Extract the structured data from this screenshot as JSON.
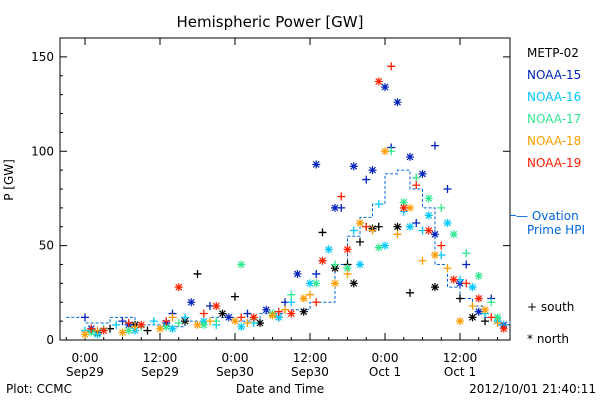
{
  "chart_data": {
    "type": "scatter",
    "title": "Hemispheric Power [GW]",
    "ylabel": "P [GW]",
    "xlabel": "Date and Time",
    "ylim": [
      0,
      160
    ],
    "yticks": [
      0,
      50,
      100,
      150
    ],
    "x_unit": "hours since 2012-09-29 00:00 UT",
    "xlim": [
      -4,
      68
    ],
    "xticks": [
      {
        "t": 0,
        "l1": "0:00",
        "l2": "Sep29"
      },
      {
        "t": 12,
        "l1": "12:00",
        "l2": "Sep29"
      },
      {
        "t": 24,
        "l1": "0:00",
        "l2": "Sep30"
      },
      {
        "t": 36,
        "l1": "12:00",
        "l2": "Sep30"
      },
      {
        "t": 48,
        "l1": "0:00",
        "l2": "Oct 1"
      },
      {
        "t": 60,
        "l1": "12:00",
        "l2": "Oct 1"
      }
    ],
    "series": [
      {
        "name": "METP-02",
        "color": "#000000",
        "south": [
          [
            4,
            6
          ],
          [
            10,
            5
          ],
          [
            18,
            35
          ],
          [
            24,
            23
          ],
          [
            31,
            12
          ],
          [
            38,
            57
          ],
          [
            42,
            40
          ],
          [
            44,
            52
          ],
          [
            47,
            60
          ],
          [
            52,
            25
          ],
          [
            60,
            22
          ],
          [
            64,
            10
          ]
        ],
        "north": [
          [
            2,
            4
          ],
          [
            8,
            8
          ],
          [
            16,
            10
          ],
          [
            22,
            14
          ],
          [
            28,
            9
          ],
          [
            35,
            15
          ],
          [
            40,
            38
          ],
          [
            43,
            30
          ],
          [
            46,
            59
          ],
          [
            50,
            60
          ],
          [
            56,
            28
          ],
          [
            62,
            12
          ]
        ]
      },
      {
        "name": "NOAA-15",
        "color": "#0022bb",
        "south": [
          [
            0,
            12
          ],
          [
            6,
            10
          ],
          [
            14,
            14
          ],
          [
            20,
            18
          ],
          [
            26,
            14
          ],
          [
            32,
            20
          ],
          [
            37,
            35
          ],
          [
            41,
            70
          ],
          [
            45,
            85
          ],
          [
            49,
            102
          ],
          [
            53,
            62
          ],
          [
            56,
            103
          ],
          [
            58,
            80
          ],
          [
            61,
            40
          ],
          [
            65,
            22
          ]
        ],
        "north": [
          [
            1,
            6
          ],
          [
            7,
            8
          ],
          [
            13,
            9
          ],
          [
            17,
            20
          ],
          [
            23,
            12
          ],
          [
            29,
            16
          ],
          [
            34,
            35
          ],
          [
            37,
            93
          ],
          [
            40,
            70
          ],
          [
            43,
            92
          ],
          [
            46,
            90
          ],
          [
            48,
            134
          ],
          [
            50,
            126
          ],
          [
            52,
            97
          ],
          [
            54,
            88
          ],
          [
            56,
            56
          ],
          [
            60,
            30
          ],
          [
            63,
            15
          ],
          [
            67,
            8
          ]
        ]
      },
      {
        "name": "NOAA-16",
        "color": "#00c8ff",
        "south": [
          [
            0,
            5
          ],
          [
            5,
            8
          ],
          [
            11,
            10
          ],
          [
            16,
            12
          ],
          [
            21,
            8
          ],
          [
            27,
            9
          ],
          [
            33,
            20
          ],
          [
            38,
            42
          ],
          [
            43,
            58
          ],
          [
            47,
            72
          ],
          [
            51,
            68
          ],
          [
            54,
            58
          ],
          [
            57,
            45
          ],
          [
            60,
            32
          ],
          [
            64,
            14
          ],
          [
            67,
            8
          ]
        ],
        "north": [
          [
            2,
            3
          ],
          [
            8,
            5
          ],
          [
            14,
            6
          ],
          [
            19,
            10
          ],
          [
            25,
            7
          ],
          [
            31,
            12
          ],
          [
            36,
            30
          ],
          [
            39,
            48
          ],
          [
            44,
            40
          ],
          [
            48,
            50
          ],
          [
            52,
            60
          ],
          [
            55,
            66
          ],
          [
            58,
            62
          ],
          [
            62,
            28
          ],
          [
            66,
            10
          ]
        ]
      },
      {
        "name": "NOAA-17",
        "color": "#30e890",
        "south": [
          [
            3,
            6
          ],
          [
            9,
            7
          ],
          [
            15,
            9
          ],
          [
            21,
            10
          ],
          [
            27,
            11
          ],
          [
            33,
            24
          ],
          [
            40,
            40
          ],
          [
            45,
            60
          ],
          [
            49,
            100
          ],
          [
            53,
            86
          ],
          [
            57,
            70
          ],
          [
            61,
            46
          ],
          [
            65,
            20
          ]
        ],
        "north": [
          [
            1,
            4
          ],
          [
            7,
            5
          ],
          [
            13,
            7
          ],
          [
            19,
            8
          ],
          [
            25,
            40
          ],
          [
            30,
            14
          ],
          [
            37,
            30
          ],
          [
            42,
            38
          ],
          [
            47,
            49
          ],
          [
            51,
            73
          ],
          [
            55,
            75
          ],
          [
            59,
            56
          ],
          [
            63,
            34
          ],
          [
            66,
            12
          ]
        ]
      },
      {
        "name": "NOAA-18",
        "color": "#ff9d00",
        "south": [
          [
            2,
            5
          ],
          [
            8,
            7
          ],
          [
            14,
            12
          ],
          [
            20,
            10
          ],
          [
            26,
            9
          ],
          [
            32,
            16
          ],
          [
            36,
            24
          ],
          [
            42,
            35
          ],
          [
            46,
            58
          ],
          [
            50,
            56
          ],
          [
            54,
            42
          ],
          [
            58,
            38
          ],
          [
            62,
            18
          ],
          [
            66,
            9
          ]
        ],
        "north": [
          [
            0,
            3
          ],
          [
            6,
            4
          ],
          [
            12,
            6
          ],
          [
            18,
            8
          ],
          [
            24,
            10
          ],
          [
            30,
            13
          ],
          [
            35,
            22
          ],
          [
            40,
            30
          ],
          [
            44,
            62
          ],
          [
            48,
            100
          ],
          [
            52,
            70
          ],
          [
            56,
            45
          ],
          [
            60,
            10
          ],
          [
            64,
            16
          ]
        ]
      },
      {
        "name": "NOAA-19",
        "color": "#ff2000",
        "south": [
          [
            1,
            6
          ],
          [
            7,
            9
          ],
          [
            13,
            10
          ],
          [
            19,
            14
          ],
          [
            25,
            12
          ],
          [
            31,
            15
          ],
          [
            37,
            20
          ],
          [
            41,
            76
          ],
          [
            45,
            60
          ],
          [
            49,
            145
          ],
          [
            53,
            82
          ],
          [
            57,
            50
          ],
          [
            61,
            30
          ],
          [
            65,
            12
          ]
        ],
        "north": [
          [
            3,
            5
          ],
          [
            9,
            8
          ],
          [
            15,
            28
          ],
          [
            21,
            18
          ],
          [
            27,
            12
          ],
          [
            33,
            14
          ],
          [
            38,
            42
          ],
          [
            42,
            48
          ],
          [
            47,
            137
          ],
          [
            51,
            70
          ],
          [
            55,
            58
          ],
          [
            59,
            32
          ],
          [
            63,
            22
          ],
          [
            67,
            6
          ]
        ]
      }
    ],
    "ovation": {
      "name": "— Ovation Prime HPI",
      "color": "#0066dd",
      "points": [
        [
          -3,
          12
        ],
        [
          0,
          9
        ],
        [
          4,
          12
        ],
        [
          8,
          8
        ],
        [
          12,
          7
        ],
        [
          16,
          10
        ],
        [
          20,
          12
        ],
        [
          24,
          10
        ],
        [
          28,
          14
        ],
        [
          32,
          16
        ],
        [
          36,
          20
        ],
        [
          40,
          40
        ],
        [
          42,
          55
        ],
        [
          44,
          65
        ],
        [
          46,
          72
        ],
        [
          48,
          88
        ],
        [
          50,
          90
        ],
        [
          52,
          80
        ],
        [
          54,
          70
        ],
        [
          56,
          40
        ],
        [
          58,
          28
        ],
        [
          60,
          22
        ],
        [
          62,
          18
        ],
        [
          64,
          12
        ],
        [
          66,
          8
        ],
        [
          68,
          10
        ]
      ]
    }
  },
  "legend": {
    "series": [
      "METP-02",
      "NOAA-15",
      "NOAA-16",
      "NOAA-17",
      "NOAA-18",
      "NOAA-19"
    ],
    "ovation_line1": "— Ovation",
    "ovation_line2": "Prime HPI",
    "south": "+ south",
    "north": "* north"
  },
  "footer": {
    "left": "Plot: CCMC",
    "right": "2012/10/01 21:40:11"
  }
}
